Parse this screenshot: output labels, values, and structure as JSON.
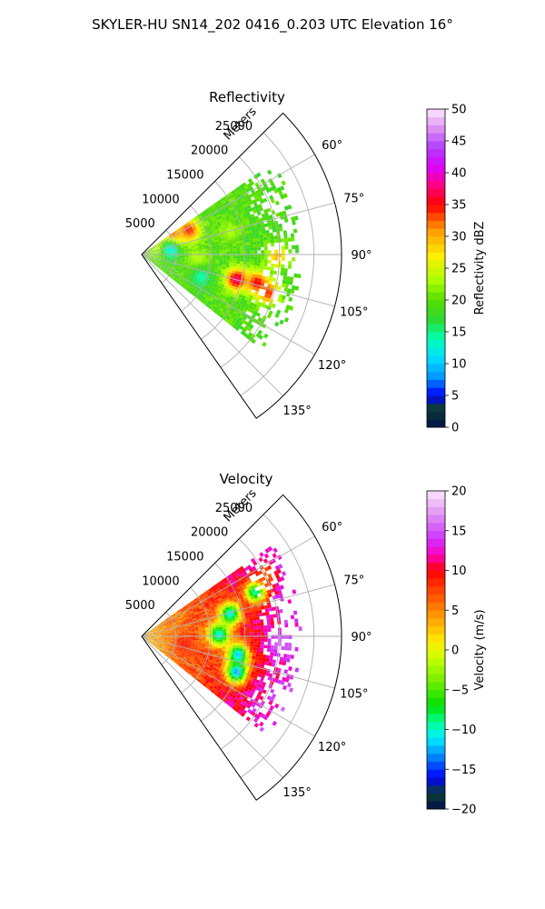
{
  "figure_title": "SKYLER-HU  SN14_202  0416_0.203 UTC Elevation 16°",
  "colors": {
    "ring": "#000000",
    "grid": "#b0b0b0",
    "background": "#ffffff"
  },
  "chart_data": [
    {
      "id": "reflectivity",
      "type": "heatmap",
      "projection": "polar-sector",
      "title": "Reflectivity",
      "range_label": "Meters",
      "range_unit": "m",
      "range_ticks": [
        5000,
        10000,
        15000,
        20000,
        25000
      ],
      "range_tick_labels": [
        "5000",
        "10000",
        "15000",
        "20000",
        "25000"
      ],
      "range_max": 29000,
      "azimuth_start_deg": 45,
      "azimuth_end_deg": 145,
      "azimuth_ticks": [
        60,
        75,
        90,
        105,
        120,
        135
      ],
      "azimuth_tick_labels": [
        "60°",
        "75°",
        "90°",
        "105°",
        "120°",
        "135°"
      ],
      "data_extent": {
        "azimuth_min_deg": 55,
        "azimuth_max_deg": 128,
        "range_max_m": 23000
      },
      "colorbar": {
        "label": "Reflectivity dBZ",
        "min": 0,
        "max": 50,
        "ticks": [
          0,
          5,
          10,
          15,
          20,
          25,
          30,
          35,
          40,
          45,
          50
        ],
        "tick_labels": [
          "0",
          "5",
          "10",
          "15",
          "20",
          "25",
          "30",
          "35",
          "40",
          "45",
          "50"
        ],
        "stops": [
          {
            "v": 0,
            "c": "#04104a"
          },
          {
            "v": 3,
            "c": "#0b3d33"
          },
          {
            "v": 5,
            "c": "#0000ff"
          },
          {
            "v": 8,
            "c": "#0099ff"
          },
          {
            "v": 11,
            "c": "#00e0ff"
          },
          {
            "v": 14,
            "c": "#00ffb0"
          },
          {
            "v": 17,
            "c": "#2ed82e"
          },
          {
            "v": 20,
            "c": "#55dd00"
          },
          {
            "v": 23,
            "c": "#a8ff00"
          },
          {
            "v": 27,
            "c": "#ffee00"
          },
          {
            "v": 31,
            "c": "#ff9a00"
          },
          {
            "v": 35,
            "c": "#ff0000"
          },
          {
            "v": 38,
            "c": "#ff0080"
          },
          {
            "v": 41,
            "c": "#dd00ff"
          },
          {
            "v": 44,
            "c": "#b040ff"
          },
          {
            "v": 47,
            "c": "#e090f0"
          },
          {
            "v": 50,
            "c": "#fbe8ff"
          }
        ]
      },
      "base_values": {
        "near": 20,
        "far": 19
      },
      "features": [
        {
          "azimuth_deg": 62,
          "range_m": 7500,
          "value": 34
        },
        {
          "azimuth_deg": 60,
          "range_m": 4500,
          "value": 40
        },
        {
          "azimuth_deg": 62,
          "range_m": 3000,
          "value": 28
        },
        {
          "azimuth_deg": 90,
          "range_m": 19500,
          "value": 30
        },
        {
          "azimuth_deg": 104,
          "range_m": 14000,
          "value": 38
        },
        {
          "azimuth_deg": 103,
          "range_m": 17000,
          "value": 36
        },
        {
          "azimuth_deg": 106,
          "range_m": 19000,
          "value": 34
        },
        {
          "azimuth_deg": 95,
          "range_m": 8000,
          "value": 24
        },
        {
          "azimuth_deg": 75,
          "range_m": 13000,
          "value": 23
        },
        {
          "azimuth_deg": 110,
          "range_m": 9000,
          "value": 14
        },
        {
          "azimuth_deg": 80,
          "range_m": 4000,
          "value": 12
        }
      ]
    },
    {
      "id": "velocity",
      "type": "heatmap",
      "projection": "polar-sector",
      "title": "Velocity",
      "range_label": "Meters",
      "range_unit": "m",
      "range_ticks": [
        5000,
        10000,
        15000,
        20000,
        25000
      ],
      "range_tick_labels": [
        "5000",
        "10000",
        "15000",
        "20000",
        "25000"
      ],
      "range_max": 29000,
      "azimuth_start_deg": 45,
      "azimuth_end_deg": 145,
      "azimuth_ticks": [
        60,
        75,
        90,
        105,
        120,
        135
      ],
      "azimuth_tick_labels": [
        "60°",
        "75°",
        "90°",
        "105°",
        "120°",
        "135°"
      ],
      "data_extent": {
        "azimuth_min_deg": 55,
        "azimuth_max_deg": 128,
        "range_max_m": 23000
      },
      "colorbar": {
        "label": "Velocity (m/s)",
        "min": -20,
        "max": 20,
        "ticks": [
          -20,
          -15,
          -10,
          -5,
          0,
          5,
          10,
          15,
          20
        ],
        "tick_labels": [
          "−20",
          "−15",
          "−10",
          "−5",
          "0",
          "5",
          "10",
          "15",
          "20"
        ],
        "stops": [
          {
            "v": -20,
            "c": "#04104a"
          },
          {
            "v": -18,
            "c": "#0b3d33"
          },
          {
            "v": -16,
            "c": "#0000ff"
          },
          {
            "v": -13,
            "c": "#0099ff"
          },
          {
            "v": -11,
            "c": "#00f0ff"
          },
          {
            "v": -9,
            "c": "#00ff90"
          },
          {
            "v": -7,
            "c": "#00e000"
          },
          {
            "v": -4,
            "c": "#70ee00"
          },
          {
            "v": -1,
            "c": "#c8ff00"
          },
          {
            "v": 1,
            "c": "#ffee00"
          },
          {
            "v": 4,
            "c": "#ffa000"
          },
          {
            "v": 7,
            "c": "#ff5000"
          },
          {
            "v": 10,
            "c": "#ff0000"
          },
          {
            "v": 12,
            "c": "#ff00c0"
          },
          {
            "v": 14,
            "c": "#cc33ff"
          },
          {
            "v": 17,
            "c": "#e090f0"
          },
          {
            "v": 20,
            "c": "#fbe8ff"
          }
        ]
      },
      "base_values": {
        "near": 3,
        "far": 14
      },
      "features": [
        {
          "azimuth_deg": 88,
          "range_m": 11000,
          "value": -11
        },
        {
          "azimuth_deg": 75,
          "range_m": 13000,
          "value": -11
        },
        {
          "azimuth_deg": 100,
          "range_m": 14000,
          "value": -12
        },
        {
          "azimuth_deg": 68,
          "range_m": 17500,
          "value": -10
        },
        {
          "azimuth_deg": 110,
          "range_m": 14500,
          "value": -13
        },
        {
          "azimuth_deg": 63,
          "range_m": 20000,
          "value": 6
        },
        {
          "azimuth_deg": 92,
          "range_m": 20000,
          "value": 16
        },
        {
          "azimuth_deg": 100,
          "range_m": 6000,
          "value": 9
        }
      ]
    }
  ]
}
